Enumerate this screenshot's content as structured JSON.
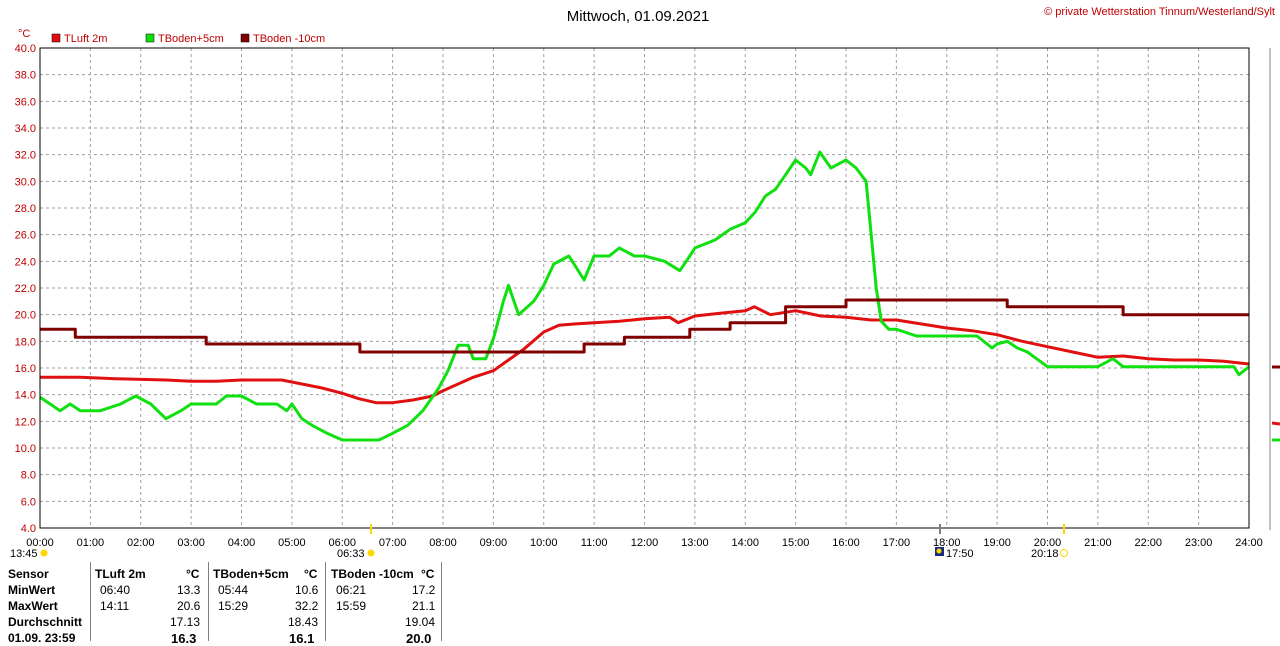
{
  "header": {
    "title": "Mittwoch, 01.09.2021",
    "credit": "© private Wetterstation Tinnum/Westerland/Sylt"
  },
  "colors": {
    "TLuft": "#e01010",
    "TBoden5": "#10e010",
    "TBoden10": "#800000",
    "grid": "#a0a0a0",
    "sun_marker": "#ffd700"
  },
  "chart_data": {
    "type": "line",
    "ylabel": "°C",
    "ylim": [
      4.0,
      40.0
    ],
    "yticks": [
      "4.0",
      "6.0",
      "8.0",
      "10.0",
      "12.0",
      "14.0",
      "16.0",
      "18.0",
      "20.0",
      "22.0",
      "24.0",
      "26.0",
      "28.0",
      "30.0",
      "32.0",
      "34.0",
      "36.0",
      "38.0",
      "40.0"
    ],
    "xlim": [
      0,
      24
    ],
    "xticks": [
      "00:00",
      "01:00",
      "02:00",
      "03:00",
      "04:00",
      "05:00",
      "06:00",
      "07:00",
      "08:00",
      "09:00",
      "10:00",
      "11:00",
      "12:00",
      "13:00",
      "14:00",
      "15:00",
      "16:00",
      "17:00",
      "18:00",
      "19:00",
      "20:00",
      "21:00",
      "22:00",
      "23:00",
      "24:00"
    ],
    "grid": true,
    "legend_position": "top-left",
    "series": [
      {
        "name": "TLuft 2m",
        "color": "#e01010",
        "points": [
          [
            0,
            15.3
          ],
          [
            0.8,
            15.3
          ],
          [
            1.5,
            15.2
          ],
          [
            2.5,
            15.1
          ],
          [
            3,
            15.0
          ],
          [
            3.5,
            15.0
          ],
          [
            4,
            15.1
          ],
          [
            4.8,
            15.1
          ],
          [
            5.2,
            14.8
          ],
          [
            5.6,
            14.5
          ],
          [
            6,
            14.1
          ],
          [
            6.33,
            13.7
          ],
          [
            6.67,
            13.4
          ],
          [
            7,
            13.4
          ],
          [
            7.4,
            13.6
          ],
          [
            7.8,
            13.9
          ],
          [
            8,
            14.3
          ],
          [
            8.3,
            14.8
          ],
          [
            8.6,
            15.3
          ],
          [
            9,
            15.8
          ],
          [
            9.3,
            16.6
          ],
          [
            9.6,
            17.4
          ],
          [
            10,
            18.7
          ],
          [
            10.3,
            19.2
          ],
          [
            10.6,
            19.3
          ],
          [
            11,
            19.4
          ],
          [
            11.5,
            19.5
          ],
          [
            12,
            19.7
          ],
          [
            12.5,
            19.8
          ],
          [
            12.67,
            19.4
          ],
          [
            13,
            19.9
          ],
          [
            13.5,
            20.1
          ],
          [
            14,
            20.3
          ],
          [
            14.18,
            20.6
          ],
          [
            14.5,
            20.0
          ],
          [
            15,
            20.3
          ],
          [
            15.5,
            19.9
          ],
          [
            16,
            19.8
          ],
          [
            16.5,
            19.6
          ],
          [
            17,
            19.6
          ],
          [
            17.5,
            19.3
          ],
          [
            18,
            19.0
          ],
          [
            18.5,
            18.8
          ],
          [
            19,
            18.5
          ],
          [
            19.5,
            18.0
          ],
          [
            20,
            17.6
          ],
          [
            20.5,
            17.2
          ],
          [
            21,
            16.8
          ],
          [
            21.5,
            16.9
          ],
          [
            22,
            16.7
          ],
          [
            22.5,
            16.6
          ],
          [
            23,
            16.6
          ],
          [
            23.5,
            16.5
          ],
          [
            24,
            16.3
          ]
        ]
      },
      {
        "name": "TBoden+5cm",
        "color": "#10e010",
        "points": [
          [
            0,
            13.8
          ],
          [
            0.2,
            13.3
          ],
          [
            0.4,
            12.8
          ],
          [
            0.6,
            13.3
          ],
          [
            0.8,
            12.8
          ],
          [
            1.2,
            12.8
          ],
          [
            1.6,
            13.3
          ],
          [
            1.9,
            13.9
          ],
          [
            2.2,
            13.3
          ],
          [
            2.5,
            12.2
          ],
          [
            2.8,
            12.8
          ],
          [
            3,
            13.3
          ],
          [
            3.5,
            13.3
          ],
          [
            3.7,
            13.9
          ],
          [
            4,
            13.9
          ],
          [
            4.3,
            13.3
          ],
          [
            4.7,
            13.3
          ],
          [
            4.9,
            12.8
          ],
          [
            5,
            13.3
          ],
          [
            5.2,
            12.2
          ],
          [
            5.4,
            11.7
          ],
          [
            5.7,
            11.1
          ],
          [
            6,
            10.6
          ],
          [
            6.5,
            10.6
          ],
          [
            6.73,
            10.6
          ],
          [
            7,
            11.1
          ],
          [
            7.3,
            11.7
          ],
          [
            7.6,
            12.8
          ],
          [
            7.9,
            14.4
          ],
          [
            8.1,
            15.8
          ],
          [
            8.3,
            17.7
          ],
          [
            8.5,
            17.7
          ],
          [
            8.6,
            16.7
          ],
          [
            8.85,
            16.7
          ],
          [
            9,
            18.2
          ],
          [
            9.2,
            21.0
          ],
          [
            9.3,
            22.2
          ],
          [
            9.5,
            20.0
          ],
          [
            9.8,
            21.0
          ],
          [
            10,
            22.2
          ],
          [
            10.2,
            23.8
          ],
          [
            10.5,
            24.4
          ],
          [
            10.6,
            23.8
          ],
          [
            10.8,
            22.6
          ],
          [
            11,
            24.4
          ],
          [
            11.3,
            24.4
          ],
          [
            11.5,
            25.0
          ],
          [
            11.8,
            24.4
          ],
          [
            12,
            24.4
          ],
          [
            12.4,
            24.0
          ],
          [
            12.7,
            23.3
          ],
          [
            12.9,
            24.4
          ],
          [
            13,
            25.0
          ],
          [
            13.4,
            25.6
          ],
          [
            13.7,
            26.4
          ],
          [
            14,
            26.9
          ],
          [
            14.2,
            27.7
          ],
          [
            14.4,
            28.9
          ],
          [
            14.6,
            29.4
          ],
          [
            14.8,
            30.5
          ],
          [
            15,
            31.6
          ],
          [
            15.2,
            31.0
          ],
          [
            15.3,
            30.5
          ],
          [
            15.48,
            32.2
          ],
          [
            15.7,
            31.0
          ],
          [
            16,
            31.6
          ],
          [
            16.2,
            31.0
          ],
          [
            16.4,
            30.0
          ],
          [
            16.5,
            26.0
          ],
          [
            16.6,
            22.0
          ],
          [
            16.7,
            19.5
          ],
          [
            16.85,
            18.9
          ],
          [
            17,
            18.9
          ],
          [
            17.4,
            18.4
          ],
          [
            18,
            18.4
          ],
          [
            18.6,
            18.4
          ],
          [
            18.9,
            17.5
          ],
          [
            19,
            17.8
          ],
          [
            19.2,
            18.0
          ],
          [
            19.4,
            17.5
          ],
          [
            19.6,
            17.2
          ],
          [
            20,
            16.1
          ],
          [
            20.5,
            16.1
          ],
          [
            21,
            16.1
          ],
          [
            21.3,
            16.7
          ],
          [
            21.5,
            16.1
          ],
          [
            22,
            16.1
          ],
          [
            22.5,
            16.1
          ],
          [
            23,
            16.1
          ],
          [
            23.7,
            16.1
          ],
          [
            23.8,
            15.5
          ],
          [
            24,
            16.1
          ]
        ]
      },
      {
        "name": "TBoden -10cm",
        "color": "#800000",
        "points": [
          [
            0,
            18.9
          ],
          [
            0.7,
            18.9
          ],
          [
            0.7,
            18.3
          ],
          [
            3.3,
            18.3
          ],
          [
            3.3,
            17.8
          ],
          [
            6.35,
            17.8
          ],
          [
            6.35,
            17.2
          ],
          [
            10.8,
            17.2
          ],
          [
            10.8,
            17.8
          ],
          [
            11.6,
            17.8
          ],
          [
            11.6,
            18.3
          ],
          [
            12.9,
            18.3
          ],
          [
            12.9,
            18.9
          ],
          [
            13.7,
            18.9
          ],
          [
            13.7,
            19.4
          ],
          [
            14.8,
            19.4
          ],
          [
            14.8,
            20.6
          ],
          [
            16,
            20.6
          ],
          [
            16,
            21.1
          ],
          [
            19.2,
            21.1
          ],
          [
            19.2,
            20.6
          ],
          [
            21.5,
            20.6
          ],
          [
            21.5,
            20.0
          ],
          [
            24,
            20.0
          ]
        ]
      }
    ]
  },
  "sun": {
    "left_time": "13:45",
    "sunrise": "06:33",
    "sunset": "20:18",
    "moon_time": "17:50"
  },
  "stats": {
    "headers": {
      "sensor": "Sensor",
      "s1": "TLuft 2m",
      "s2": "TBoden+5cm",
      "s3": "TBoden -10cm",
      "unit": "°C"
    },
    "rows": [
      {
        "label": "MinWert",
        "v1t": "06:40",
        "v1": "13.3",
        "v2t": "05:44",
        "v2": "10.6",
        "v3t": "06:21",
        "v3": "17.2"
      },
      {
        "label": "MaxWert",
        "v1t": "14:11",
        "v1": "20.6",
        "v2t": "15:29",
        "v2": "32.2",
        "v3t": "15:59",
        "v3": "21.1"
      },
      {
        "label": "Durchschnitt",
        "v1t": "",
        "v1": "17.13",
        "v2t": "",
        "v2": "18.43",
        "v3t": "",
        "v3": "19.04"
      },
      {
        "label": "01.09. 23:59",
        "v1t": "",
        "v1": "16.3",
        "v2t": "",
        "v2": "16.1",
        "v3t": "",
        "v3": "20.0"
      }
    ]
  }
}
